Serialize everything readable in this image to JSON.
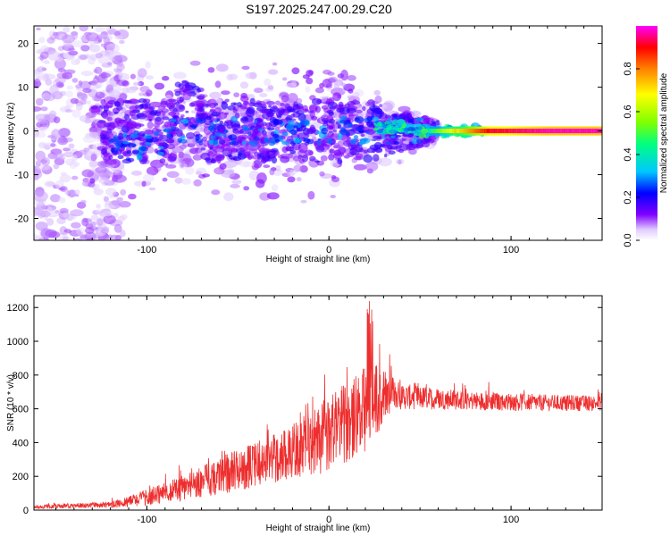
{
  "title": "S197.2025.247.00.29.C20",
  "chart_data": [
    {
      "type": "heatmap",
      "xlabel": "Height of straight line (km)",
      "ylabel": "Frequency (Hz)",
      "xlim": [
        -162,
        150
      ],
      "ylim": [
        -25,
        24
      ],
      "x_ticks": [
        -100,
        0,
        100
      ],
      "y_ticks": [
        -20,
        -10,
        0,
        10,
        20
      ],
      "colorbar": {
        "label": "Normalized spectral amplitude",
        "range": [
          0,
          1
        ],
        "ticks": [
          0.0,
          0.2,
          0.4,
          0.6,
          0.8
        ],
        "colors": [
          "#ffffff",
          "#c7a6ff",
          "#8000ff",
          "#0000ff",
          "#00c8ff",
          "#00ff80",
          "#80ff00",
          "#ffff00",
          "#ff8000",
          "#ff0000",
          "#ff00ff"
        ]
      },
      "description_points": [
        {
          "x": -115,
          "y": -3.5,
          "amp": 0.3
        },
        {
          "x": -95,
          "y": -6,
          "amp": 0.25
        },
        {
          "x": -80,
          "y": 6,
          "amp": 0.3
        },
        {
          "x": -20,
          "y": 2,
          "amp": 0.2
        },
        {
          "x": 30,
          "y": 1,
          "amp": 0.4
        },
        {
          "x": 50,
          "y": 0,
          "amp": 0.45
        },
        {
          "x": 70,
          "y": 0,
          "amp": 0.6
        },
        {
          "x": 85,
          "y": 0,
          "amp": 0.75
        },
        {
          "x": 150,
          "y": 0,
          "amp": 1.0
        }
      ]
    },
    {
      "type": "line",
      "xlabel": "Height of straight line (km)",
      "ylabel": "SNR (10 * v/v)",
      "xlim": [
        -162,
        150
      ],
      "ylim": [
        0,
        1270
      ],
      "x_ticks": [
        -100,
        0,
        100
      ],
      "y_ticks": [
        0,
        200,
        400,
        600,
        800,
        1000,
        1200
      ],
      "color": "#ee2e2e",
      "envelope_x": [
        -162,
        -120,
        -100,
        -80,
        -60,
        -40,
        -20,
        -5,
        5,
        15,
        22,
        28,
        32,
        40,
        60,
        80,
        100,
        120,
        150
      ],
      "envelope_mean": [
        15,
        25,
        60,
        110,
        170,
        230,
        300,
        360,
        420,
        480,
        540,
        590,
        650,
        650,
        640,
        630,
        625,
        620,
        620
      ],
      "envelope_spread": [
        15,
        25,
        70,
        110,
        160,
        190,
        230,
        300,
        330,
        350,
        380,
        320,
        180,
        110,
        90,
        80,
        75,
        70,
        65
      ]
    }
  ]
}
